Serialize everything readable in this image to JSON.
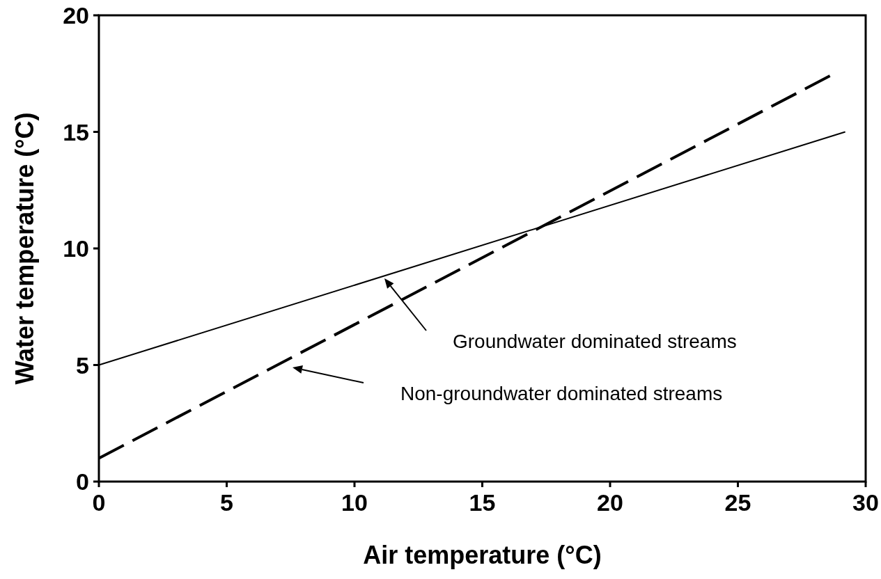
{
  "chart_data": {
    "type": "line",
    "xlabel": "Air temperature (°C)",
    "ylabel": "Water temperature (°C)",
    "xlim": [
      0,
      30
    ],
    "ylim": [
      0,
      20
    ],
    "xticks": [
      0,
      5,
      10,
      15,
      20,
      25,
      30
    ],
    "yticks": [
      0,
      5,
      10,
      15,
      20
    ],
    "grid": false,
    "series": [
      {
        "color": "#000000",
        "line_style": "solid",
        "x": [
          0,
          29.2
        ],
        "values": [
          5,
          15
        ]
      },
      {
        "color": "#000000",
        "line_style": "dashed",
        "x": [
          0,
          28.6
        ],
        "values": [
          1,
          17.4
        ]
      }
    ],
    "annotations": [
      "Groundwater dominated streams",
      "Non-groundwater dominated streams"
    ]
  }
}
